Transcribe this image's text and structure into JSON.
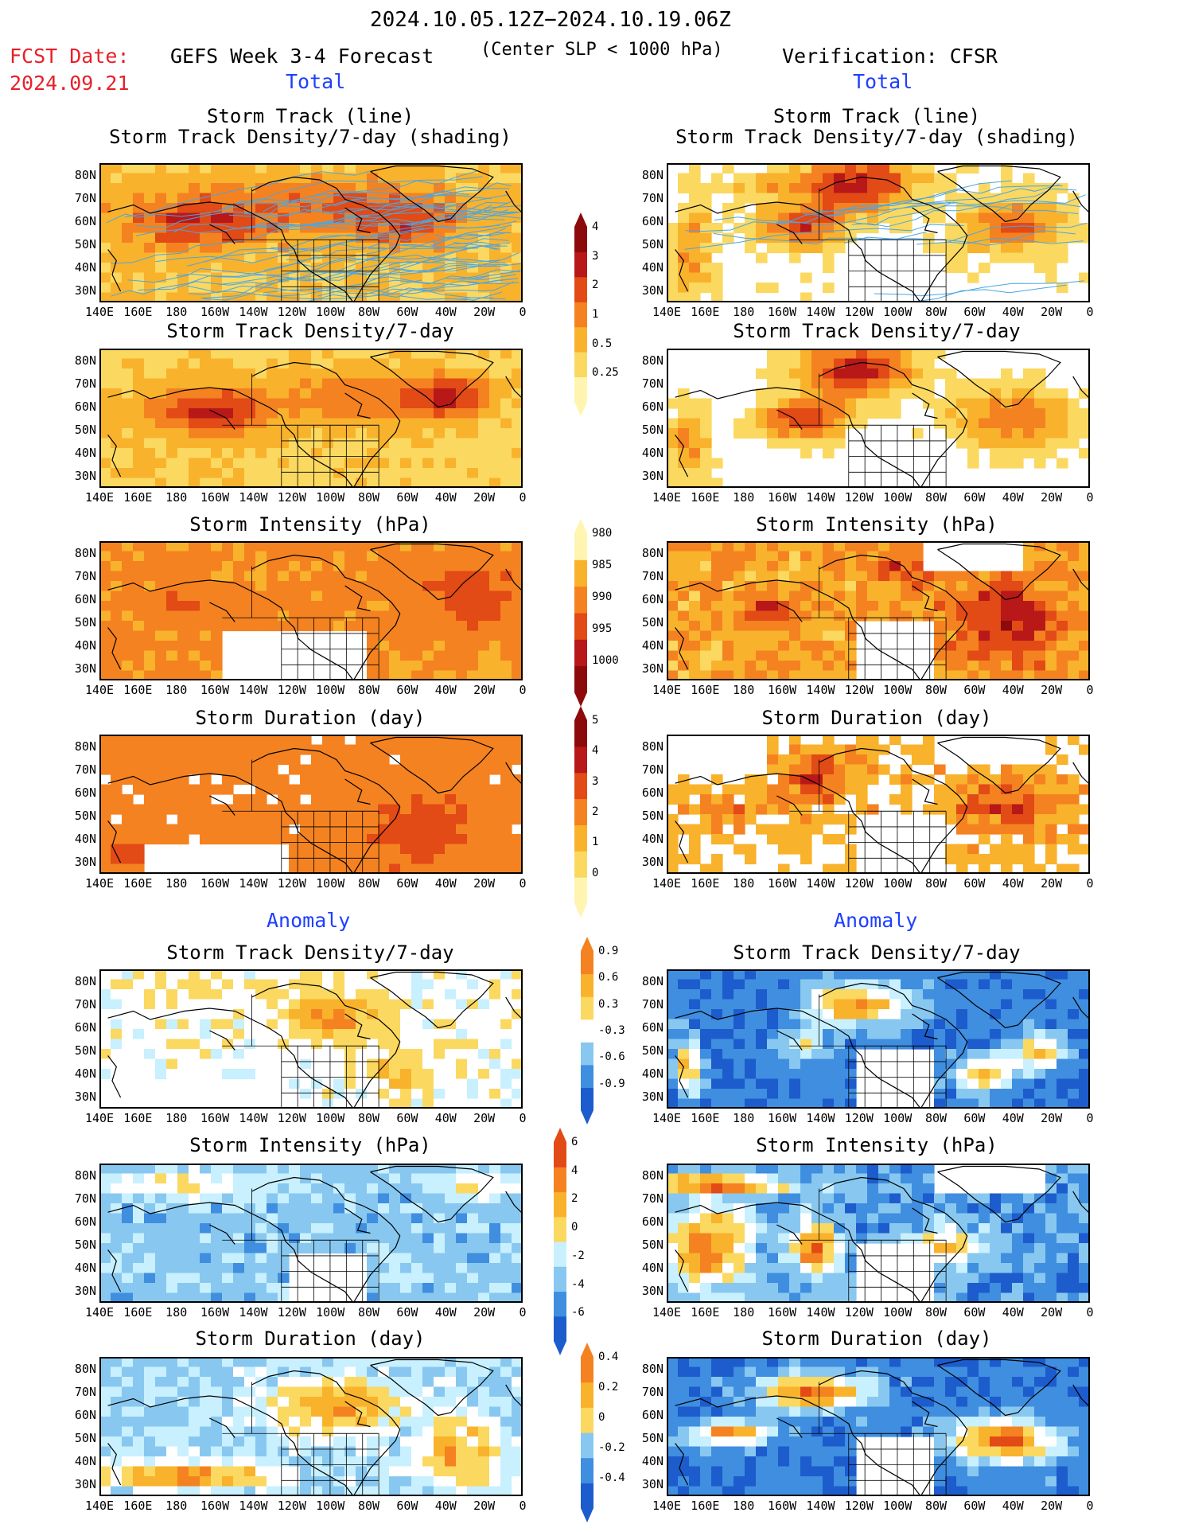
{
  "header": {
    "period": "2024.10.05.12Z−2024.10.19.06Z",
    "fcst_label": "FCST Date:",
    "fcst_date": "2024.09.21",
    "model_label": "GEFS Week 3-4 Forecast",
    "criterion": "(Center SLP < 1000 hPa)",
    "verification": "Verification: CFSR"
  },
  "sections": {
    "total_left": "Total",
    "total_right": "Total",
    "anomaly_left": "Anomaly",
    "anomaly_right": "Anomaly"
  },
  "panel_titles": {
    "track_line": "Storm Track (line)",
    "track_shading": "Storm Track Density/7-day (shading)",
    "density": "Storm Track Density/7-day",
    "intensity": "Storm Intensity (hPa)",
    "duration": "Storm Duration (day)"
  },
  "axes": {
    "lat_labels": [
      "80N",
      "70N",
      "60N",
      "50N",
      "40N",
      "30N"
    ],
    "lon_labels": [
      "140E",
      "160E",
      "180",
      "160W",
      "140W",
      "120W",
      "100W",
      "80W",
      "60W",
      "40W",
      "20W",
      "0"
    ]
  },
  "colors": {
    "c1": "#fff5b0",
    "c2": "#fbd860",
    "c3": "#f9b22c",
    "c4": "#f58220",
    "c5": "#e24a16",
    "c6": "#b81818",
    "c7": "#8c0a0a",
    "b1": "#c8f0ff",
    "b2": "#88c8f0",
    "b3": "#3f8ee0",
    "b4": "#1d5ccc",
    "track": "#4aa6e4"
  },
  "colorbars": {
    "density_total": [
      "0.25",
      "0.5",
      "1",
      "2",
      "3",
      "4"
    ],
    "intensity_total": [
      "1000",
      "995",
      "990",
      "985",
      "980"
    ],
    "duration_total": [
      "0",
      "1",
      "2",
      "3",
      "4",
      "5"
    ],
    "density_anom": [
      "-0.9",
      "-0.6",
      "-0.3",
      "0.3",
      "0.6",
      "0.9"
    ],
    "intensity_anom": [
      "-6",
      "-4",
      "-2",
      "0",
      "2",
      "4",
      "6"
    ],
    "duration_anom": [
      "-0.4",
      "-0.2",
      "0",
      "0.2",
      "0.4"
    ]
  }
}
